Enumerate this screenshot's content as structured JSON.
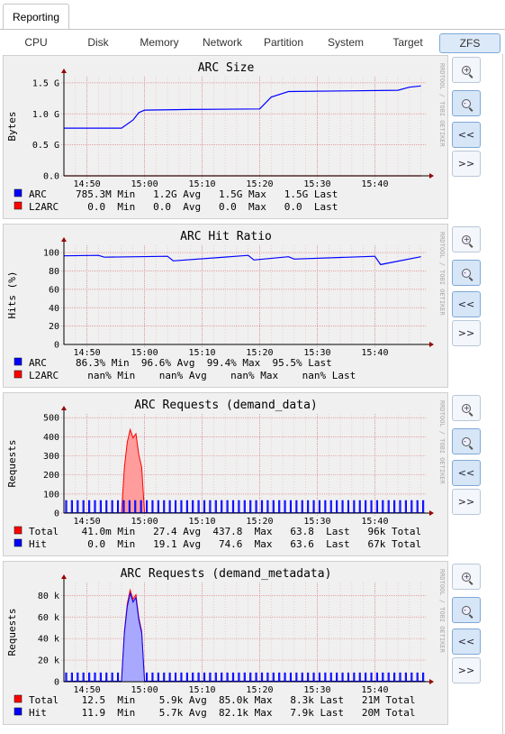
{
  "top_tab": "Reporting",
  "tabs": [
    {
      "label": "CPU",
      "active": false
    },
    {
      "label": "Disk",
      "active": false
    },
    {
      "label": "Memory",
      "active": false
    },
    {
      "label": "Network",
      "active": false
    },
    {
      "label": "Partition",
      "active": false
    },
    {
      "label": "System",
      "active": false
    },
    {
      "label": "Target",
      "active": false
    },
    {
      "label": "ZFS",
      "active": true
    }
  ],
  "watermark": "RRDTOOL / TOBI OETIKER",
  "buttons": {
    "zoom_in": "zoom-in",
    "zoom_out": "zoom-out",
    "back": "<<",
    "forward": ">>"
  },
  "colors": {
    "blue": "#0000ff",
    "red": "#ff0000",
    "blue_fill": "#a8a8ff",
    "red_fill": "#ff9c9c",
    "grid": "#e5b8b8",
    "axis": "#000000",
    "arrow": "#990000"
  },
  "x_ticks": [
    "14:50",
    "15:00",
    "15:10",
    "15:20",
    "15:30",
    "15:40"
  ],
  "chart_data": [
    {
      "type": "line",
      "title": "ARC Size",
      "ylabel": "Bytes",
      "x_range": [
        "14:46",
        "15:49"
      ],
      "y_ticks": [
        "0.0",
        "0.5 G",
        "1.0 G",
        "1.5 G"
      ],
      "y_tick_values": [
        0,
        0.5,
        1.0,
        1.5
      ],
      "ylim": [
        0,
        1.6
      ],
      "series": [
        {
          "name": "ARC",
          "color": "#0000ff",
          "fill": false,
          "x": [
            "14:46",
            "14:56",
            "14:58",
            "14:59",
            "15:00",
            "15:08",
            "15:20",
            "15:22",
            "15:25",
            "15:35",
            "15:44",
            "15:46",
            "15:48"
          ],
          "values": [
            0.77,
            0.77,
            0.9,
            1.02,
            1.06,
            1.07,
            1.08,
            1.27,
            1.36,
            1.37,
            1.38,
            1.43,
            1.45
          ]
        },
        {
          "name": "L2ARC",
          "color": "#ff0000",
          "fill": false,
          "x": [
            "14:46",
            "15:48"
          ],
          "values": [
            0,
            0
          ]
        }
      ],
      "legend": [
        {
          "name": "ARC",
          "color": "#0000ff",
          "text": "785.3M Min   1.2G Avg   1.5G Max   1.5G Last"
        },
        {
          "name": "L2ARC",
          "color": "#ff0000",
          "text": "  0.0  Min   0.0  Avg   0.0  Max   0.0  Last"
        }
      ]
    },
    {
      "type": "line",
      "title": "ARC Hit Ratio",
      "ylabel": "Hits (%)",
      "x_range": [
        "14:46",
        "15:49"
      ],
      "y_ticks": [
        "0",
        "20",
        "40",
        "60",
        "80",
        "100"
      ],
      "y_tick_values": [
        0,
        20,
        40,
        60,
        80,
        100
      ],
      "ylim": [
        0,
        108
      ],
      "series": [
        {
          "name": "ARC",
          "color": "#0000ff",
          "fill": false,
          "x": [
            "14:46",
            "14:52",
            "14:53",
            "15:04",
            "15:05",
            "15:18",
            "15:19",
            "15:25",
            "15:26",
            "15:40",
            "15:41",
            "15:48"
          ],
          "values": [
            96.5,
            97,
            95,
            96,
            91,
            97,
            92,
            95.5,
            93,
            96,
            87,
            95.5
          ]
        },
        {
          "name": "L2ARC",
          "color": "#ff0000",
          "fill": false,
          "x": [],
          "values": []
        }
      ],
      "legend": [
        {
          "name": "ARC",
          "color": "#0000ff",
          "text": "86.3% Min  96.6% Avg  99.4% Max  95.5% Last"
        },
        {
          "name": "L2ARC",
          "color": "#ff0000",
          "text": "  nan% Min    nan% Avg    nan% Max    nan% Last"
        }
      ]
    },
    {
      "type": "area",
      "title": "ARC Requests (demand_data)",
      "ylabel": "Requests",
      "x_range": [
        "14:46",
        "15:49"
      ],
      "y_ticks": [
        "0",
        "100",
        "200",
        "300",
        "400",
        "500"
      ],
      "y_tick_values": [
        0,
        100,
        200,
        300,
        400,
        500
      ],
      "ylim": [
        0,
        520
      ],
      "series": [
        {
          "name": "Total",
          "color": "#ff0000",
          "fill": true,
          "spikes": {
            "start": "14:56",
            "end": "15:00",
            "peak": 437.8,
            "base": 60
          }
        },
        {
          "name": "Hit",
          "color": "#0000ff",
          "fill": true,
          "periodic": {
            "period_min": 1,
            "high": 65,
            "low": 2
          }
        }
      ],
      "legend": [
        {
          "name": "Total",
          "color": "#ff0000",
          "text": " 41.0m Min   27.4 Avg  437.8  Max   63.8  Last   96k Total"
        },
        {
          "name": "Hit",
          "color": "#0000ff",
          "text": "  0.0  Min   19.1 Avg   74.6  Max   63.6  Last   67k Total"
        }
      ]
    },
    {
      "type": "area",
      "title": "ARC Requests (demand_metadata)",
      "ylabel": "Requests",
      "x_range": [
        "14:46",
        "15:49"
      ],
      "y_ticks": [
        "0",
        "20 k",
        "40 k",
        "60 k",
        "80 k"
      ],
      "y_tick_values": [
        0,
        20,
        40,
        60,
        80
      ],
      "ylim": [
        0,
        92
      ],
      "series": [
        {
          "name": "Total",
          "color": "#ff0000",
          "fill": true,
          "spikes": {
            "start": "14:56",
            "end": "15:00",
            "peak": 85.0,
            "base": 8
          }
        },
        {
          "name": "Hit",
          "color": "#0000ff",
          "fill": true,
          "spikes": {
            "start": "14:56",
            "end": "15:00",
            "peak": 82.1,
            "base": 8
          },
          "periodic": {
            "period_min": 1,
            "high": 8,
            "low": 0.5
          }
        }
      ],
      "legend": [
        {
          "name": "Total",
          "color": "#ff0000",
          "text": " 12.5  Min    5.9k Avg  85.0k Max   8.3k Last   21M Total"
        },
        {
          "name": "Hit",
          "color": "#0000ff",
          "text": " 11.9  Min    5.7k Avg  82.1k Max   7.9k Last   20M Total"
        }
      ]
    }
  ]
}
